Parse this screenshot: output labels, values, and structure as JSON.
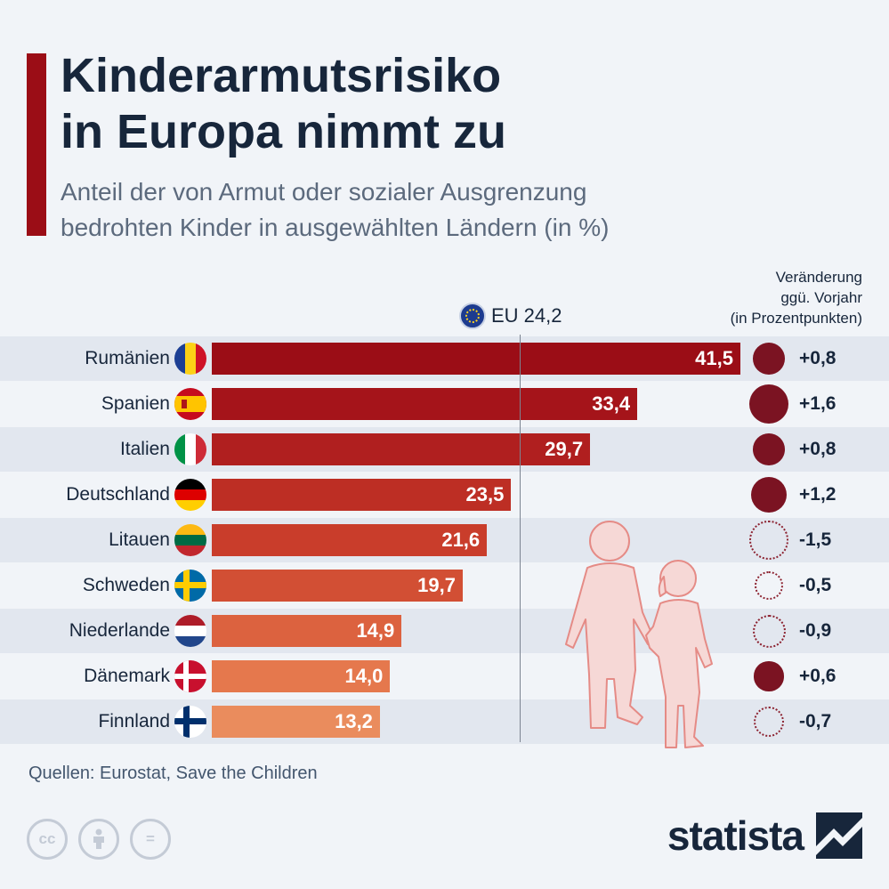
{
  "header": {
    "title_line1": "Kinderarmutsrisiko",
    "title_line2": "in Europa nimmt zu",
    "subtitle_line1": "Anteil der von Armut oder sozialer Ausgrenzung",
    "subtitle_line2": "bedrohten Kinder in ausgewählten Ländern (in %)"
  },
  "change_header": {
    "line1": "Veränderung",
    "line2": "ggü. Vorjahr",
    "line3": "(in Prozentpunkten)"
  },
  "reference": {
    "label": "EU 24,2",
    "value": 24.2
  },
  "chart_data": {
    "type": "bar",
    "orientation": "horizontal",
    "title": "Kinderarmutsrisiko in Europa nimmt zu",
    "subtitle": "Anteil der von Armut oder sozialer Ausgrenzung bedrohten Kinder in ausgewählten Ländern (in %)",
    "categories": [
      "Rumänien",
      "Spanien",
      "Italien",
      "Deutschland",
      "Litauen",
      "Schweden",
      "Niederlande",
      "Dänemark",
      "Finnland"
    ],
    "values": [
      41.5,
      33.4,
      29.7,
      23.5,
      21.6,
      19.7,
      14.9,
      14.0,
      13.2
    ],
    "value_labels": [
      "41,5",
      "33,4",
      "29,7",
      "23,5",
      "21,6",
      "19,7",
      "14,9",
      "14,0",
      "13,2"
    ],
    "change": [
      0.8,
      1.6,
      0.8,
      1.2,
      -1.5,
      -0.5,
      -0.9,
      0.6,
      -0.7
    ],
    "change_labels": [
      "+0,8",
      "+1,6",
      "+0,8",
      "+1,2",
      "-1,5",
      "-0,5",
      "-0,9",
      "+0,6",
      "-0,7"
    ],
    "bar_colors": [
      "#9b0d16",
      "#a5141a",
      "#b01f1f",
      "#bd2e24",
      "#c93d2b",
      "#d24f34",
      "#dc623f",
      "#e5784d",
      "#ea8c5d"
    ],
    "xlim": [
      0,
      41.5
    ],
    "reference_line": 24.2
  },
  "flags": [
    "romania-flag",
    "spain-flag",
    "italy-flag",
    "germany-flag",
    "lithuania-flag",
    "sweden-flag",
    "netherlands-flag",
    "denmark-flag",
    "finland-flag"
  ],
  "footer": {
    "source": "Quellen: Eurostat, Save the Children",
    "brand": "statista",
    "cc_glyphs": [
      "cc",
      "",
      "="
    ]
  },
  "colors": {
    "accent": "#9b0d16",
    "text": "#17263b",
    "positive_dot": "#7b1322",
    "background": "#f1f4f8"
  }
}
